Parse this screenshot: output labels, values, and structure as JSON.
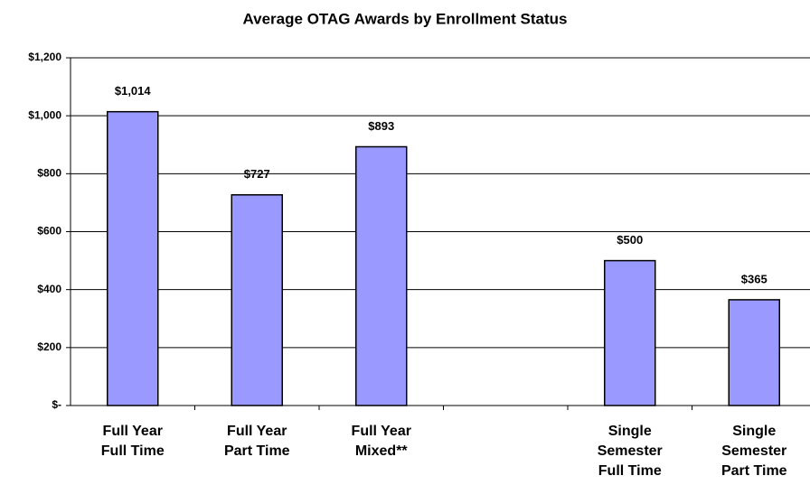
{
  "chart_data": {
    "type": "bar",
    "title": "Average OTAG Awards by Enrollment Status",
    "categories": [
      [
        "Full Year",
        "Full Time"
      ],
      [
        "Full Year",
        "Part Time"
      ],
      [
        "Full Year",
        "Mixed**"
      ],
      null,
      [
        "Single",
        "Semester",
        "Full Time"
      ],
      [
        "Single",
        "Semester",
        "Part Time"
      ]
    ],
    "values": [
      1014,
      727,
      893,
      null,
      500,
      365
    ],
    "value_labels": [
      "$1,014",
      "$727",
      "$893",
      null,
      "$500",
      "$365"
    ],
    "color": "#9999ff",
    "ylim": [
      0,
      1200
    ],
    "yticks": [
      {
        "value": 0,
        "label": "$-"
      },
      {
        "value": 200,
        "label": "$200"
      },
      {
        "value": 400,
        "label": "$400"
      },
      {
        "value": 600,
        "label": "$600"
      },
      {
        "value": 800,
        "label": "$800"
      },
      {
        "value": 1000,
        "label": "$1,000"
      },
      {
        "value": 1200,
        "label": "$1,200"
      }
    ],
    "grid": true
  }
}
